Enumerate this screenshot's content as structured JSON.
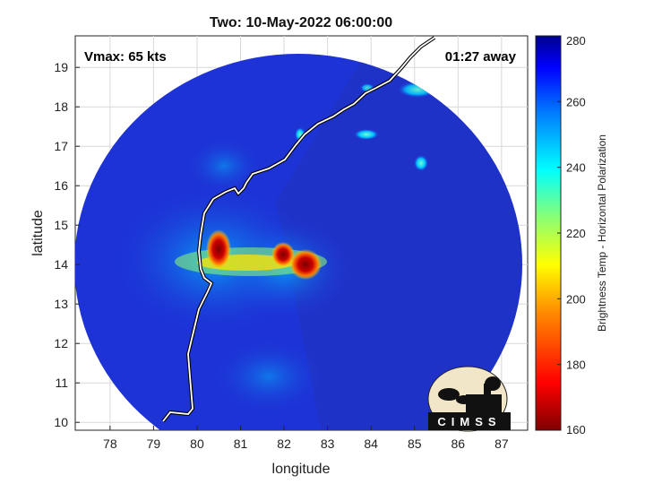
{
  "title": "Two: 10-May-2022 06:00:00",
  "vmax_label": "Vmax: 65 kts",
  "time_away": "01:27 away",
  "xlabel": "longitude",
  "ylabel": "latitude",
  "x_ticks": [
    "78",
    "79",
    "80",
    "81",
    "82",
    "83",
    "84",
    "85",
    "86",
    "87"
  ],
  "y_ticks": [
    "10",
    "11",
    "12",
    "13",
    "14",
    "15",
    "16",
    "17",
    "18",
    "19"
  ],
  "xlim": [
    77.2,
    87.6
  ],
  "ylim": [
    9.8,
    19.8
  ],
  "colorbar": {
    "label": "Brightness Temp - Horizontal Polarization",
    "ticks": [
      "160",
      "180",
      "200",
      "220",
      "240",
      "260",
      "280"
    ],
    "range": [
      160,
      280
    ]
  },
  "logo": {
    "text": "CIMSS"
  },
  "colors": {
    "background_field": "#1b2fd0",
    "coastline": "#ffffff",
    "warm_core": "#8a0000"
  }
}
